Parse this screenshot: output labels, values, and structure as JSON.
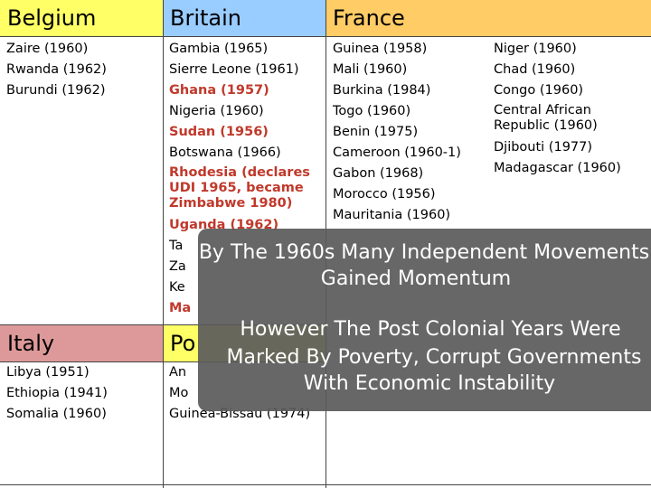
{
  "headers": {
    "belgium": "Belgium",
    "britain": "Britain",
    "france": "France",
    "italy": "Italy",
    "portugal": "Po"
  },
  "belgium_list": [
    "Zaire (1960)",
    "Rwanda (1962)",
    "Burundi (1962)"
  ],
  "britain_list": [
    {
      "text": "Gambia (1965)",
      "highlight": false
    },
    {
      "text": "Sierre Leone (1961)",
      "highlight": false
    },
    {
      "text": "Ghana (1957)",
      "highlight": true
    },
    {
      "text": "Nigeria (1960)",
      "highlight": false
    },
    {
      "text": "Sudan (1956)",
      "highlight": true
    },
    {
      "text": "Botswana (1966)",
      "highlight": false
    },
    {
      "text": "Rhodesia (declares UDI 1965, became Zimbabwe 1980)",
      "highlight": true
    },
    {
      "text": "Uganda (1962)",
      "highlight": true
    },
    {
      "text": "Ta",
      "highlight": false
    },
    {
      "text": "Za",
      "highlight": false
    },
    {
      "text": "Ke",
      "highlight": false
    },
    {
      "text": "Ma",
      "highlight": true
    }
  ],
  "france_list_1": [
    "Guinea (1958)",
    "Mali (1960)",
    "Burkina (1984)",
    "Togo (1960)",
    "Benin (1975)",
    "Cameroon (1960-1)",
    "Gabon (1968)",
    "Morocco (1956)",
    "Mauritania (1960)"
  ],
  "france_list_2": [
    "Niger (1960)",
    "Chad (1960)",
    "Congo (1960)",
    "Central African Republic (1960)",
    "Djibouti (1977)",
    "Madagascar (1960)"
  ],
  "italy_list": [
    "Libya (1951)",
    "Ethiopia (1941)",
    "Somalia (1960)"
  ],
  "portugal_list": [
    "An",
    "Mo",
    "Guinea-Bissau (1974)"
  ],
  "overlay": {
    "headline_1": "By The 1960s Many Independent Movements",
    "headline_2": "Gained Momentum",
    "body_1": "However The Post Colonial Years Were",
    "body_2": "Marked By Poverty, Corrupt Governments",
    "body_3": "With Economic Instability"
  },
  "colors": {
    "belgium_header": "#ffff66",
    "britain_header": "#99ccff",
    "france_header": "#ffcc66",
    "italy_header": "#dd9999",
    "portugal_header": "#ffff66",
    "highlight_text": "#c0392b"
  }
}
